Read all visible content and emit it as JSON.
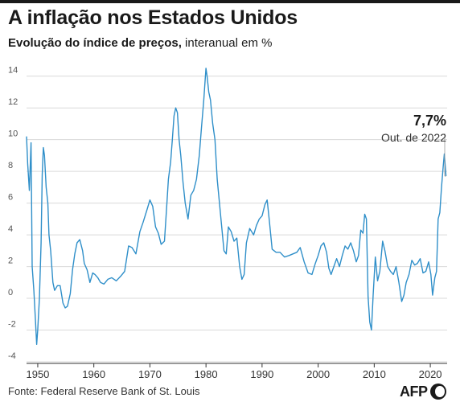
{
  "header": {
    "title": "A inflação nos Estados Unidos",
    "subtitle_bold": "Evolução do índice de preços,",
    "subtitle_rest": " interanual em %"
  },
  "footer": {
    "source": "Fonte: Federal Reserve Bank of St. Louis",
    "logo_text": "AFP"
  },
  "colors": {
    "line": "#2f8fc9",
    "grid": "#d9d9d9",
    "text": "#1a1a1a"
  },
  "chart_data": {
    "type": "line",
    "title": "A inflação nos Estados Unidos",
    "subtitle": "Evolução do índice de preços, interanual em %",
    "xlabel": "",
    "ylabel": "",
    "xlim": [
      1948,
      2023
    ],
    "ylim": [
      -4,
      15
    ],
    "x_ticks": [
      1950,
      1960,
      1970,
      1980,
      1990,
      2000,
      2010,
      2020
    ],
    "x_tick_labels": [
      "1950",
      "1960",
      "1970",
      "1980",
      "1990",
      "2000",
      "2010",
      "2020"
    ],
    "y_ticks": [
      -4,
      -2,
      0,
      2,
      4,
      6,
      8,
      10,
      12,
      14
    ],
    "y_tick_labels": [
      "-4",
      "-2",
      "0",
      "2",
      "4",
      "6",
      "8",
      "10",
      "12",
      "14"
    ],
    "grid": "horizontal",
    "annotation": {
      "value_label": "7,7%",
      "date_label": "Out. de 2022",
      "x": 2022.8,
      "y": 7.7
    },
    "series": [
      {
        "x": [
          1948.0,
          1948.2,
          1948.5,
          1948.8,
          1949.0,
          1949.3,
          1949.6,
          1949.8,
          1950.0,
          1950.3,
          1950.6,
          1950.8,
          1951.0,
          1951.2,
          1951.5,
          1951.8,
          1952.0,
          1952.3,
          1952.7,
          1953.0,
          1953.5,
          1954.0,
          1954.5,
          1954.9,
          1955.3,
          1955.8,
          1956.2,
          1956.6,
          1957.0,
          1957.5,
          1958.0,
          1958.3,
          1958.8,
          1959.3,
          1959.8,
          1960.2,
          1960.7,
          1961.2,
          1961.8,
          1962.5,
          1963.2,
          1964.0,
          1964.8,
          1965.5,
          1966.2,
          1966.8,
          1967.5,
          1968.2,
          1968.8,
          1969.5,
          1970.0,
          1970.5,
          1971.0,
          1971.5,
          1972.0,
          1972.6,
          1973.0,
          1973.3,
          1973.7,
          1974.0,
          1974.3,
          1974.6,
          1974.9,
          1975.2,
          1975.5,
          1975.9,
          1976.3,
          1976.8,
          1977.3,
          1977.8,
          1978.3,
          1978.8,
          1979.2,
          1979.6,
          1980.0,
          1980.2,
          1980.5,
          1980.8,
          1981.2,
          1981.6,
          1982.0,
          1982.4,
          1982.8,
          1983.2,
          1983.6,
          1984.0,
          1984.5,
          1985.0,
          1985.5,
          1986.0,
          1986.4,
          1986.8,
          1987.2,
          1987.8,
          1988.5,
          1989.0,
          1989.5,
          1990.0,
          1990.5,
          1990.9,
          1991.3,
          1991.8,
          1992.5,
          1993.2,
          1994.0,
          1994.8,
          1995.5,
          1996.2,
          1996.8,
          1997.5,
          1998.2,
          1998.9,
          1999.5,
          2000.0,
          2000.5,
          2001.0,
          2001.5,
          2001.9,
          2002.3,
          2002.8,
          2003.3,
          2003.8,
          2004.3,
          2004.8,
          2005.3,
          2005.8,
          2006.3,
          2006.8,
          2007.2,
          2007.6,
          2008.0,
          2008.3,
          2008.6,
          2008.9,
          2009.2,
          2009.5,
          2009.8,
          2010.2,
          2010.6,
          2011.0,
          2011.5,
          2011.9,
          2012.4,
          2012.9,
          2013.4,
          2013.9,
          2014.4,
          2014.9,
          2015.3,
          2015.7,
          2016.2,
          2016.7,
          2017.2,
          2017.7,
          2018.2,
          2018.7,
          2019.2,
          2019.7,
          2020.1,
          2020.4,
          2020.8,
          2021.1,
          2021.4,
          2021.7,
          2022.0,
          2022.3,
          2022.5,
          2022.8
        ],
        "y": [
          10.2,
          8.5,
          6.8,
          9.8,
          2.0,
          0.5,
          -1.5,
          -2.9,
          -2.0,
          0.0,
          3.5,
          7.8,
          9.5,
          9.0,
          7.0,
          6.0,
          4.0,
          3.0,
          1.0,
          0.5,
          0.8,
          0.8,
          -0.3,
          -0.6,
          -0.5,
          0.3,
          1.8,
          2.8,
          3.5,
          3.7,
          3.0,
          2.2,
          1.8,
          1.0,
          1.6,
          1.5,
          1.3,
          1.0,
          0.9,
          1.2,
          1.3,
          1.1,
          1.4,
          1.7,
          3.3,
          3.2,
          2.8,
          4.2,
          4.8,
          5.6,
          6.2,
          5.8,
          4.5,
          4.1,
          3.4,
          3.6,
          5.8,
          7.5,
          8.6,
          10.0,
          11.5,
          12.0,
          11.7,
          10.0,
          9.0,
          7.3,
          6.0,
          5.0,
          6.5,
          6.8,
          7.5,
          9.0,
          10.8,
          12.5,
          14.5,
          14.0,
          13.0,
          12.5,
          11.0,
          10.0,
          7.5,
          6.0,
          4.5,
          3.0,
          2.8,
          4.5,
          4.2,
          3.6,
          3.8,
          2.0,
          1.2,
          1.5,
          3.5,
          4.4,
          4.0,
          4.6,
          5.0,
          5.2,
          5.9,
          6.2,
          4.9,
          3.1,
          2.9,
          2.9,
          2.6,
          2.7,
          2.8,
          2.9,
          3.2,
          2.3,
          1.6,
          1.5,
          2.2,
          2.7,
          3.3,
          3.5,
          2.9,
          1.9,
          1.5,
          2.0,
          2.5,
          2.0,
          2.7,
          3.3,
          3.1,
          3.5,
          3.0,
          2.3,
          2.7,
          4.3,
          4.1,
          5.3,
          5.0,
          0.1,
          -1.5,
          -2.0,
          0.2,
          2.6,
          1.1,
          1.7,
          3.6,
          3.0,
          2.0,
          1.7,
          1.5,
          2.0,
          1.0,
          -0.2,
          0.2,
          1.0,
          1.5,
          2.4,
          2.1,
          2.2,
          2.5,
          1.6,
          1.7,
          2.3,
          1.5,
          0.2,
          1.3,
          1.7,
          5.0,
          5.4,
          7.0,
          8.3,
          9.1,
          7.7
        ]
      }
    ]
  }
}
